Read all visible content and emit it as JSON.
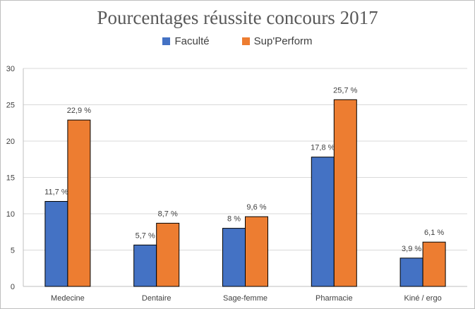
{
  "chart_data": {
    "type": "bar",
    "title": "Pourcentages réussite concours 2017",
    "categories": [
      "Medecine",
      "Dentaire",
      "Sage-femme",
      "Pharmacie",
      "Kiné / ergo"
    ],
    "series": [
      {
        "name": "Faculté",
        "color": "#4472c4",
        "values": [
          11.7,
          5.7,
          8,
          17.8,
          3.9
        ],
        "labels": [
          "11,7 %",
          "5,7 %",
          "8 %",
          "17,8 %",
          "3,9 %"
        ]
      },
      {
        "name": "Sup'Perform",
        "color": "#ed7d31",
        "values": [
          22.9,
          8.7,
          9.6,
          25.7,
          6.1
        ],
        "labels": [
          "22,9 %",
          "8,7 %",
          "9,6 %",
          "25,7 %",
          "6,1 %"
        ]
      }
    ],
    "xlabel": "",
    "ylabel": "",
    "ylim": [
      0,
      30
    ],
    "yticks": [
      0,
      5,
      10,
      15,
      20,
      25,
      30
    ],
    "grid": true,
    "legend_position": "top"
  }
}
